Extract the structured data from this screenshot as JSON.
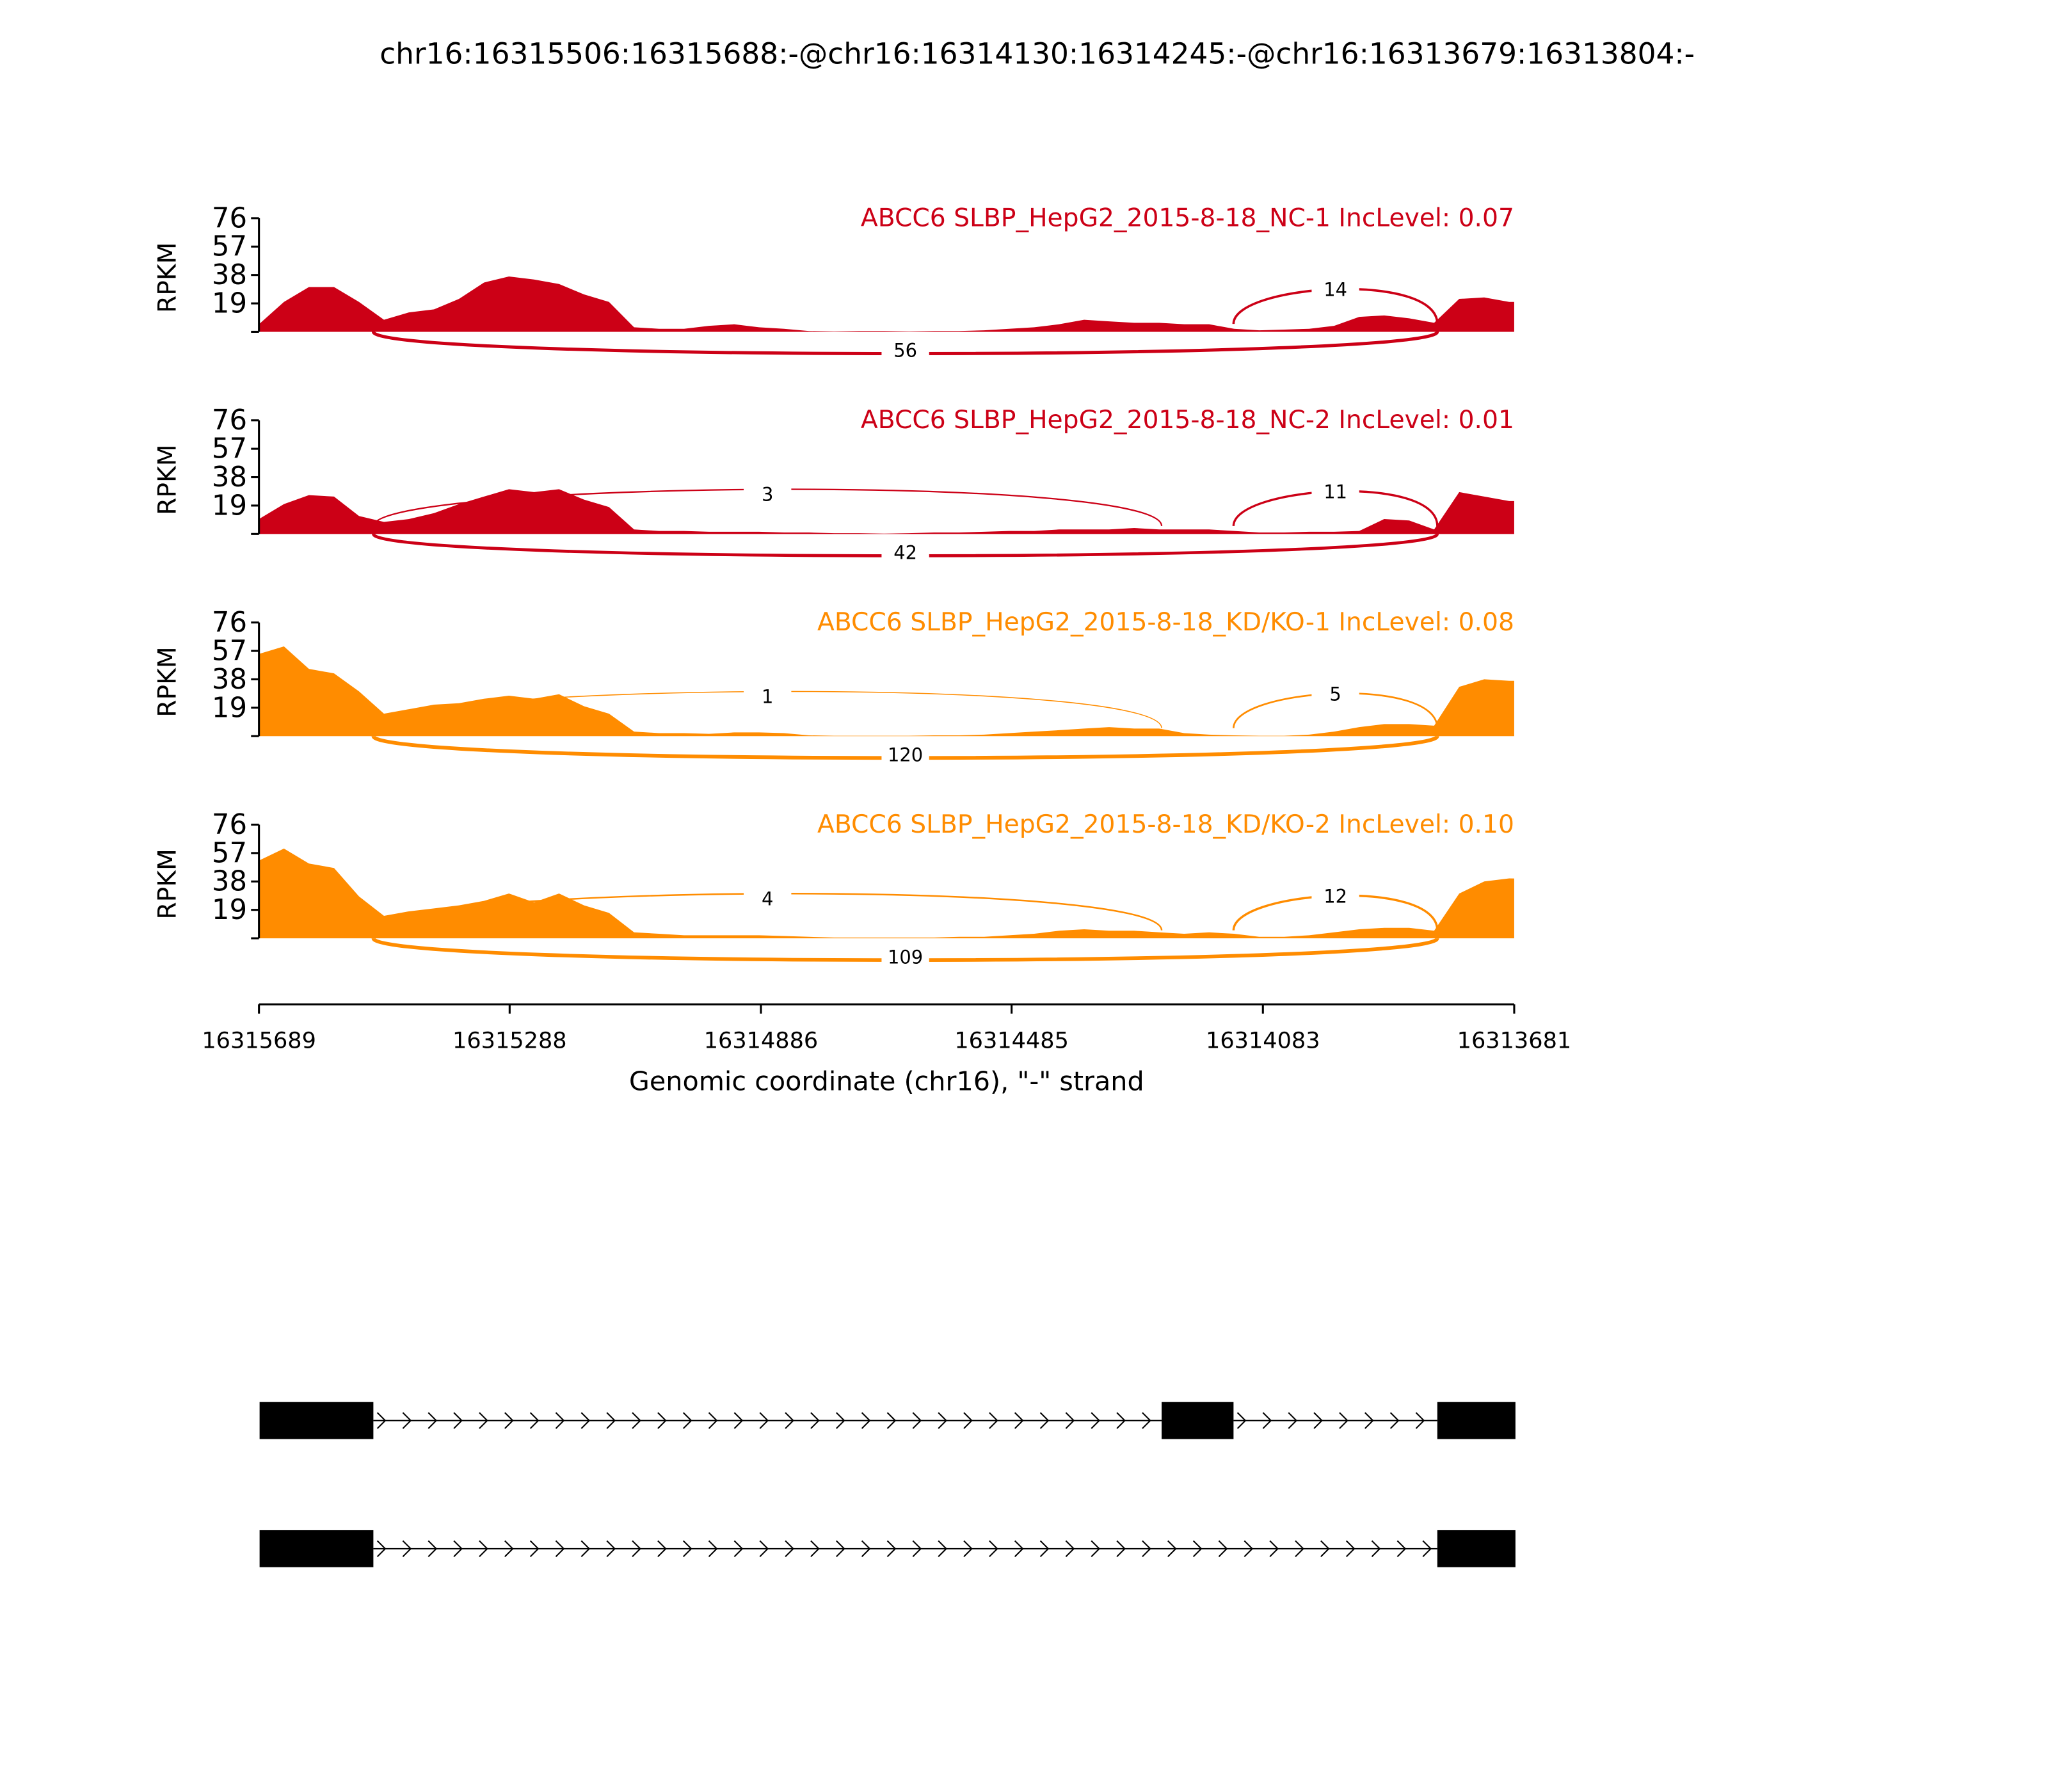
{
  "chart_data": {
    "type": "area",
    "title": "chr16:16315506:16315688:-@chr16:16314130:16314245:-@chr16:16313679:16313804:-",
    "xlabel": "Genomic coordinate (chr16), \"-\" strand",
    "ylabel": "RPKM",
    "xlim": [
      16315689,
      16313681
    ],
    "ylim": [
      0,
      76
    ],
    "yticks": [
      "76",
      "57",
      "38",
      "19"
    ],
    "ytick_values": [
      76,
      57,
      38,
      19
    ],
    "xticks": [
      "16315689",
      "16315288",
      "16314886",
      "16314485",
      "16314083",
      "16313681"
    ],
    "xtick_values": [
      16315689,
      16315288,
      16314886,
      16314485,
      16314083,
      16313681
    ],
    "coverage_start": 16315689,
    "coverage_step_bp": -40,
    "colors": {
      "NC": "#cc0016",
      "KD": "#ff8c00"
    },
    "exons": {
      "exon1": [
        16315506,
        16315688
      ],
      "exon2": [
        16314130,
        16314245
      ],
      "exon3": [
        16313679,
        16313804
      ]
    },
    "samples": [
      {
        "title": "ABCC6 SLBP_HepG2_2015-8-18_NC-1 IncLevel: 0.07",
        "group": "NC",
        "coverage": [
          5,
          20,
          30,
          30,
          20,
          8,
          13,
          15,
          22,
          33,
          37,
          35,
          32,
          25,
          20,
          3,
          2,
          2,
          4,
          5,
          3,
          2,
          0.5,
          0.3,
          0.5,
          0.5,
          0.3,
          0.5,
          0.5,
          1,
          2,
          3,
          5,
          8,
          7,
          6,
          6,
          5,
          5,
          2,
          1,
          1.5,
          2,
          4,
          10,
          11,
          9,
          6,
          22,
          23,
          20
        ],
        "junctions": [
          {
            "from": 16315506,
            "to": 16313804,
            "count": "56",
            "side": "below"
          },
          {
            "from": 16314130,
            "to": 16313804,
            "count": "14",
            "side": "above"
          }
        ]
      },
      {
        "title": "ABCC6 SLBP_HepG2_2015-8-18_NC-2 IncLevel: 0.01",
        "group": "NC",
        "coverage": [
          10,
          20,
          26,
          25,
          12,
          8,
          10,
          14,
          20,
          25,
          30,
          28,
          30,
          23,
          18,
          3,
          2,
          2,
          1.5,
          1.5,
          1.5,
          1,
          1,
          0.5,
          0.5,
          0.3,
          0.5,
          1,
          1,
          1.5,
          2,
          2,
          3,
          3,
          3,
          4,
          3,
          3,
          3,
          2,
          1,
          1,
          1.5,
          1.5,
          2,
          10,
          9,
          3,
          28,
          25,
          22
        ],
        "junctions": [
          {
            "from": 16315506,
            "to": 16313804,
            "count": "42",
            "side": "below"
          },
          {
            "from": 16315506,
            "to": 16314245,
            "count": "3",
            "side": "above"
          },
          {
            "from": 16314130,
            "to": 16313804,
            "count": "11",
            "side": "above"
          }
        ]
      },
      {
        "title": "ABCC6 SLBP_HepG2_2015-8-18_KD/KO-1 IncLevel: 0.08",
        "group": "KD",
        "coverage": [
          55,
          60,
          45,
          42,
          30,
          15,
          18,
          21,
          22,
          25,
          27,
          25,
          28,
          20,
          15,
          3,
          2,
          2,
          1.5,
          2.5,
          2.5,
          2,
          0.5,
          0.3,
          0.3,
          0.3,
          0.3,
          0.5,
          0.5,
          1,
          2,
          3,
          4,
          5,
          6,
          5,
          5,
          2,
          1,
          0.5,
          0.3,
          0.3,
          1,
          3,
          6,
          8,
          8,
          7,
          33,
          38,
          37
        ],
        "junctions": [
          {
            "from": 16315506,
            "to": 16313804,
            "count": "120",
            "side": "below"
          },
          {
            "from": 16315506,
            "to": 16314245,
            "count": "1",
            "side": "above"
          },
          {
            "from": 16314130,
            "to": 16313804,
            "count": "5",
            "side": "above"
          }
        ]
      },
      {
        "title": "ABCC6 SLBP_HepG2_2015-8-18_KD/KO-2 IncLevel: 0.10",
        "group": "KD",
        "coverage": [
          52,
          60,
          50,
          47,
          28,
          15,
          18,
          20,
          22,
          25,
          30,
          24,
          30,
          22,
          17,
          4,
          3,
          2,
          2,
          2,
          2,
          1.5,
          1,
          0.5,
          0.5,
          0.5,
          0.5,
          0.5,
          1,
          1,
          2,
          3,
          5,
          6,
          5,
          5,
          4,
          3,
          4,
          3,
          1,
          1,
          2,
          4,
          6,
          7,
          7,
          5,
          30,
          38,
          40
        ],
        "junctions": [
          {
            "from": 16315506,
            "to": 16313804,
            "count": "109",
            "side": "below"
          },
          {
            "from": 16315506,
            "to": 16314245,
            "count": "4",
            "side": "above"
          },
          {
            "from": 16314130,
            "to": 16313804,
            "count": "12",
            "side": "above"
          }
        ]
      }
    ],
    "isoforms": [
      {
        "exons": [
          [
            16315506,
            16315688
          ],
          [
            16314130,
            16314245
          ],
          [
            16313679,
            16313804
          ]
        ]
      },
      {
        "exons": [
          [
            16315506,
            16315688
          ],
          [
            16313679,
            16313804
          ]
        ]
      }
    ]
  }
}
